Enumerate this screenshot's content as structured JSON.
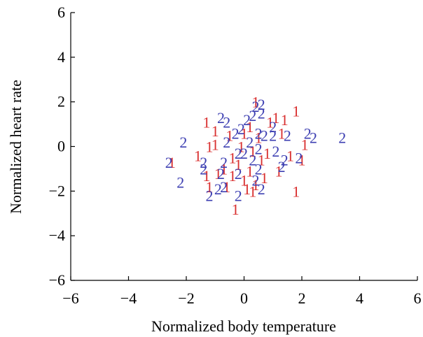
{
  "chart_data": {
    "type": "scatter",
    "xlabel": "Normalized body temperature",
    "ylabel": "Normalized heart rate",
    "xlim": [
      -6,
      6
    ],
    "ylim": [
      -6,
      6
    ],
    "xticks": [
      "−6",
      "−4",
      "−2",
      "0",
      "2",
      "4",
      "6"
    ],
    "yticks": [
      "6",
      "4",
      "2",
      "0",
      "−2",
      "−4",
      "−6"
    ],
    "grid": false,
    "series": [
      {
        "name": "1",
        "color": "#d93030",
        "marker": "1",
        "points": [
          [
            0.4,
            2.0
          ],
          [
            -1.3,
            1.1
          ],
          [
            1.8,
            1.6
          ],
          [
            1.1,
            1.3
          ],
          [
            1.4,
            1.2
          ],
          [
            0.9,
            1.1
          ],
          [
            -1.0,
            0.7
          ],
          [
            -1.2,
            0.0
          ],
          [
            -1.0,
            0.1
          ],
          [
            -0.5,
            0.5
          ],
          [
            0.0,
            0.6
          ],
          [
            0.2,
            0.9
          ],
          [
            0.5,
            0.4
          ],
          [
            1.3,
            0.6
          ],
          [
            2.1,
            0.1
          ],
          [
            -1.6,
            -0.4
          ],
          [
            -0.4,
            -0.5
          ],
          [
            -0.2,
            -0.8
          ],
          [
            -0.7,
            -1.0
          ],
          [
            0.6,
            -0.6
          ],
          [
            0.8,
            -0.3
          ],
          [
            1.6,
            -0.4
          ],
          [
            2.0,
            -0.6
          ],
          [
            -2.5,
            -0.7
          ],
          [
            -1.3,
            -1.3
          ],
          [
            -0.9,
            -1.2
          ],
          [
            -0.4,
            -1.3
          ],
          [
            0.0,
            -1.5
          ],
          [
            0.2,
            -1.1
          ],
          [
            0.4,
            -1.7
          ],
          [
            0.7,
            -1.4
          ],
          [
            1.2,
            -1.1
          ],
          [
            -1.2,
            -1.8
          ],
          [
            -0.6,
            -1.8
          ],
          [
            0.1,
            -1.9
          ],
          [
            0.3,
            -2.0
          ],
          [
            1.8,
            -2.0
          ],
          [
            -0.3,
            -2.8
          ],
          [
            0.3,
            -0.2
          ],
          [
            -0.1,
            0.0
          ]
        ]
      },
      {
        "name": "2",
        "color": "#3d3fb2",
        "marker": "2",
        "points": [
          [
            0.4,
            1.8
          ],
          [
            0.6,
            1.9
          ],
          [
            0.6,
            1.5
          ],
          [
            0.3,
            1.4
          ],
          [
            -0.8,
            1.3
          ],
          [
            -0.6,
            1.1
          ],
          [
            0.1,
            1.2
          ],
          [
            -0.1,
            0.8
          ],
          [
            1.0,
            0.9
          ],
          [
            0.5,
            0.6
          ],
          [
            -0.3,
            0.6
          ],
          [
            0.7,
            0.5
          ],
          [
            1.0,
            0.5
          ],
          [
            1.5,
            0.5
          ],
          [
            2.2,
            0.6
          ],
          [
            2.4,
            0.4
          ],
          [
            3.4,
            0.4
          ],
          [
            -2.1,
            0.2
          ],
          [
            -0.6,
            0.2
          ],
          [
            0.2,
            0.2
          ],
          [
            -0.2,
            -0.3
          ],
          [
            0.0,
            -0.3
          ],
          [
            0.5,
            -0.1
          ],
          [
            1.1,
            -0.2
          ],
          [
            -2.6,
            -0.7
          ],
          [
            -1.4,
            -0.7
          ],
          [
            -0.7,
            -0.7
          ],
          [
            0.3,
            -0.6
          ],
          [
            1.4,
            -0.6
          ],
          [
            1.9,
            -0.5
          ],
          [
            -1.4,
            -1.0
          ],
          [
            -0.8,
            -1.2
          ],
          [
            -0.2,
            -1.2
          ],
          [
            0.5,
            -1.0
          ],
          [
            1.3,
            -0.9
          ],
          [
            -2.2,
            -1.6
          ],
          [
            -0.7,
            -1.8
          ],
          [
            -0.9,
            -1.9
          ],
          [
            0.4,
            -1.5
          ],
          [
            0.6,
            -1.9
          ],
          [
            -1.2,
            -2.2
          ],
          [
            -0.2,
            -2.2
          ]
        ]
      }
    ]
  }
}
